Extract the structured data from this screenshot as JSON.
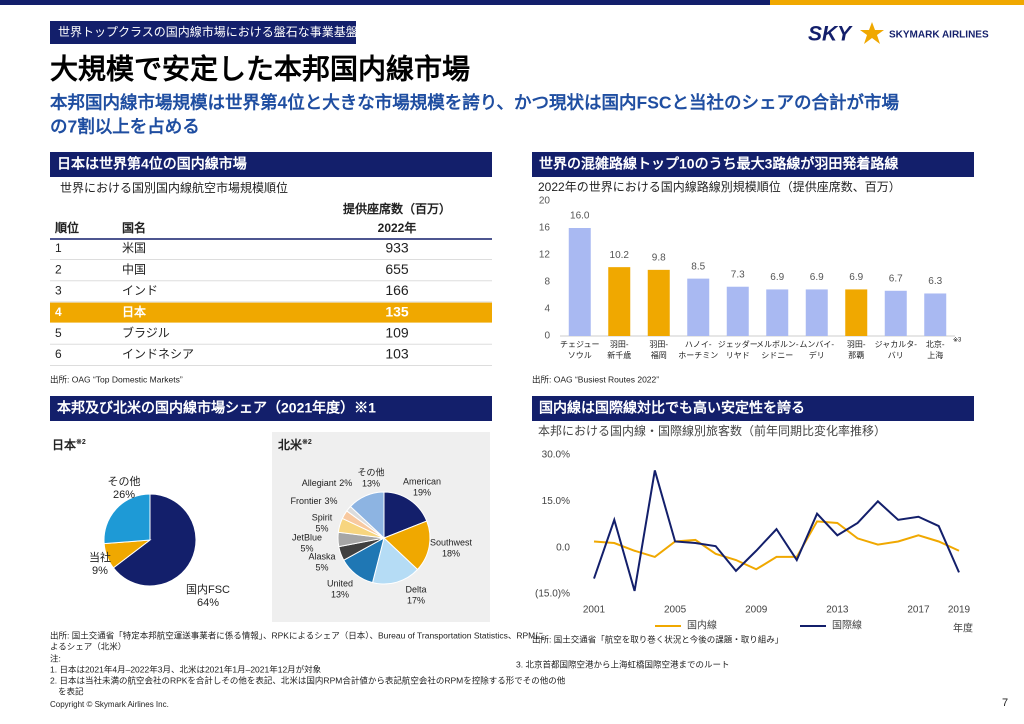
{
  "header": {
    "tag": "世界トップクラスの国内線市場における盤石な事業基盤",
    "logo_mark": "SKY",
    "logo_text": "SKYMARK AIRLINES",
    "title": "大規模で安定した本邦国内線市場",
    "subtitle": [
      "本邦国内線市場規模は世界第4位と大きな市場規模を誇り、かつ現状は国内FSCと当社のシェアの合計が市場",
      "の7割以上を占める"
    ]
  },
  "section_titles": [
    "日本は世界第4位の国内線市場",
    "世界の混雑路線トップ10のうち最大3路線が羽田発着路線",
    "本邦及び北米の国内線市場シェア（2021年度）※1",
    "国内線は国際線対比でも高い安定性を誇る"
  ],
  "table": {
    "caption": "世界における国別国内線航空市場規模順位",
    "unit_header": "提供座席数（百万）",
    "headers": [
      "順位",
      "国名",
      "2022年"
    ],
    "rows": [
      [
        1,
        "米国",
        933
      ],
      [
        2,
        "中国",
        655
      ],
      [
        3,
        "インド",
        166
      ],
      [
        4,
        "日本",
        135
      ],
      [
        5,
        "ブラジル",
        109
      ],
      [
        6,
        "インドネシア",
        103
      ]
    ],
    "source": "出所: OAG “Top Domestic Markets”"
  },
  "chart_data": [
    {
      "type": "bar",
      "title": "2022年の世界における国内線路線別規模順位（提供座席数、百万）",
      "categories": [
        [
          "チェジュー",
          "ソウル"
        ],
        [
          "羽田-",
          "新千歳"
        ],
        [
          "羽田-",
          "福岡"
        ],
        [
          "ハノイ-",
          "ホーチミン"
        ],
        [
          "ジェッダー",
          "リヤド"
        ],
        [
          "メルボルン-",
          "シドニー"
        ],
        [
          "ムンバイ-",
          "デリ"
        ],
        [
          "羽田-",
          "那覇"
        ],
        [
          "ジャカルタ-",
          "バリ"
        ],
        [
          "北京-",
          "上海"
        ]
      ],
      "values": [
        16,
        10.2,
        9.8,
        8.5,
        7.3,
        6.9,
        6.9,
        6.9,
        6.7,
        6.3
      ],
      "value_labels": [
        "16.0",
        "10.2",
        "9.8",
        "8.5",
        "7.3",
        "6.9",
        "6.9",
        "6.9",
        "6.7",
        "6.3"
      ],
      "colors": [
        "#a9b9f2",
        "#f0a800",
        "#f0a800",
        "#a9b9f2",
        "#a9b9f2",
        "#a9b9f2",
        "#a9b9f2",
        "#f0a800",
        "#a9b9f2",
        "#a9b9f2"
      ],
      "ylim": [
        0,
        20
      ],
      "yticks": [
        0,
        4,
        8,
        12,
        16,
        20
      ],
      "annotation": "※3",
      "source": "出所: OAG “Busiest Routes 2022”"
    },
    {
      "type": "pie",
      "title": "日本",
      "note": "※2",
      "categories": [
        "国内FSC",
        "当社",
        "その他"
      ],
      "values": [
        64,
        9,
        26
      ],
      "value_labels": [
        "64%",
        "9%",
        "26%"
      ],
      "colors": [
        "#131f6b",
        "#f0a800",
        "#1e9ad6"
      ]
    },
    {
      "type": "pie",
      "title": "北米",
      "note": "※2",
      "categories": [
        "American",
        "Southwest",
        "Delta",
        "United",
        "Alaska",
        "JetBlue",
        "Spirit",
        "Frontier",
        "Allegiant",
        "その他"
      ],
      "values": [
        19,
        18,
        17,
        13,
        5,
        5,
        5,
        3,
        2,
        13
      ],
      "value_labels": [
        "19%",
        "18%",
        "17%",
        "13%",
        "5%",
        "5%",
        "5%",
        "3%",
        "2%",
        "13%"
      ],
      "colors": [
        "#131f6b",
        "#f0a800",
        "#b5dcf5",
        "#1f77b4",
        "#404040",
        "#a6a6a6",
        "#f7d57f",
        "#f8c9a0",
        "#dcdcdc",
        "#8db4e2"
      ]
    },
    {
      "type": "line",
      "title": "本邦における国内線・国際線別旅客数（前年同期比変化率推移）",
      "x": [
        2001,
        2002,
        2003,
        2004,
        2005,
        2006,
        2007,
        2008,
        2009,
        2010,
        2011,
        2012,
        2013,
        2014,
        2015,
        2016,
        2017,
        2018,
        2019
      ],
      "series": [
        {
          "name": "国内線",
          "color": "#f0a800",
          "values": [
            2,
            1.5,
            -1,
            -3,
            2,
            2.5,
            -2,
            -4,
            -7,
            -3,
            -3,
            8.5,
            8,
            3,
            1,
            2,
            4,
            2,
            -1
          ]
        },
        {
          "name": "国際線",
          "color": "#131f6b",
          "values": [
            -10,
            9,
            -14,
            25,
            2,
            1.5,
            0.5,
            -7.5,
            -1,
            6,
            -4,
            11,
            4,
            8,
            15,
            9,
            10,
            7,
            -8
          ]
        }
      ],
      "xlim": [
        2001,
        2019
      ],
      "xticks": [
        2001,
        2005,
        2009,
        2013,
        2017,
        2019
      ],
      "x_label": "年度",
      "ylim": [
        -15,
        30
      ],
      "yticks": [
        {
          "value": -15,
          "label": "(15.0)%"
        },
        {
          "value": 0,
          "label": "0.0"
        },
        {
          "value": 15,
          "label": "15.0%"
        },
        {
          "value": 30,
          "label": "30.0%"
        }
      ],
      "source": "出所: 国土交通省「航空を取り巻く状況と今後の課題・取り組み」"
    }
  ],
  "notes": {
    "source": [
      "出所: 国土交通省「特定本邦航空運送事業者に係る情報」、RPKによるシェア（日本）、Bureau of Transportation Statistics、RPMに",
      "よるシェア（北米）"
    ],
    "label": "注:",
    "items": [
      [
        "1. 日本は2021年4月–2022年3月、北米は2021年1月–2021年12月が対象"
      ],
      [
        "2. 日本は当社未満の航空会社のRPKを合計しその他を表記、北米は国内RPM合計値から表記航空会社のRPMを控除する形でその他の他",
        "を表記"
      ]
    ],
    "route_note": "3. 北京首都国際空港から上海虹橋国際空港までのルート"
  },
  "footer": {
    "copyright": "Copyright © Skymark Airlines Inc.",
    "page": 7
  }
}
